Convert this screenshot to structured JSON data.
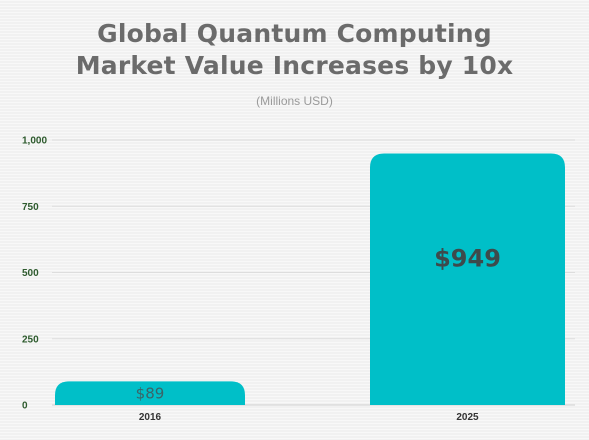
{
  "chart_data": {
    "type": "bar",
    "title_lines": [
      "Global Quantum Computing",
      "Market Value Increases by 10x"
    ],
    "subtitle": "(Millions USD)",
    "categories": [
      "2016",
      "2025"
    ],
    "values": [
      89,
      949
    ],
    "data_labels": [
      "$89",
      "$949"
    ],
    "ylim": [
      0,
      1000
    ],
    "yticks": [
      0,
      250,
      500,
      750,
      1000
    ],
    "ytick_labels": [
      "0",
      "250",
      "500",
      "750",
      "1,000"
    ],
    "grid": true,
    "legend": "none",
    "colors": {
      "bar": "#00bfc8",
      "grid": "#dddddd",
      "ytick": "#2e5b2e",
      "title": "#6b6b6b"
    }
  }
}
